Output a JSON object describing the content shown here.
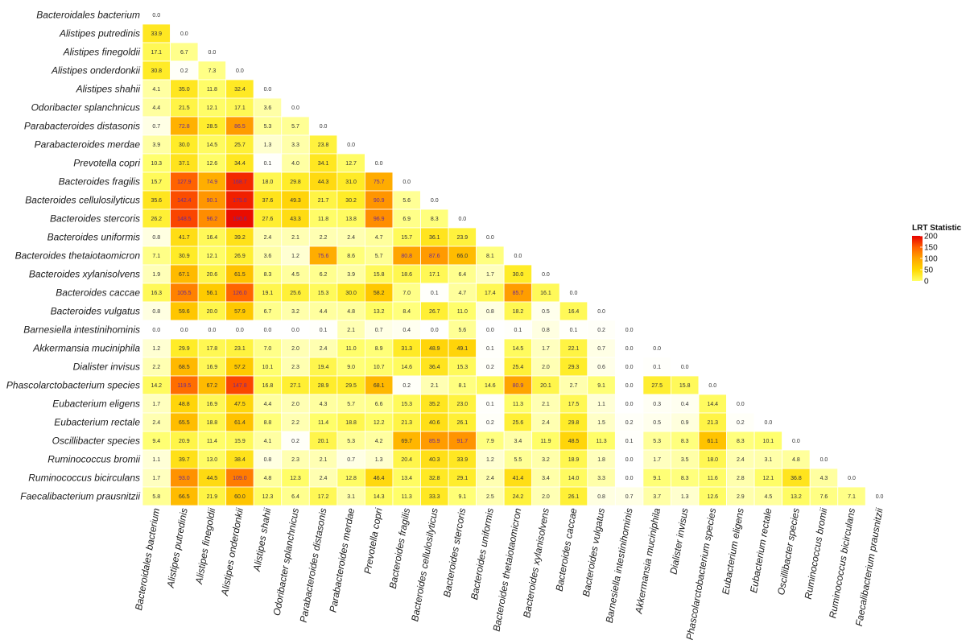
{
  "chart_data": {
    "type": "heatmap",
    "title": "",
    "xlabel": "",
    "ylabel": "",
    "species": [
      "Bacteroidales bacterium",
      "Alistipes putredinis",
      "Alistipes finegoldii",
      "Alistipes onderdonkii",
      "Alistipes shahii",
      "Odoribacter splanchnicus",
      "Parabacteroides distasonis",
      "Parabacteroides merdae",
      "Prevotella copri",
      "Bacteroides fragilis",
      "Bacteroides cellulosilyticus",
      "Bacteroides stercoris",
      "Bacteroides uniformis",
      "Bacteroides thetaiotaomicron",
      "Bacteroides xylanisolvens",
      "Bacteroides caccae",
      "Bacteroides vulgatus",
      "Barnesiella intestinihominis",
      "Akkermansia muciniphila",
      "Dialister invisus",
      "Phascolarctobacterium species",
      "Eubacterium eligens",
      "Eubacterium rectale",
      "Oscillibacter species",
      "Ruminococcus bromii",
      "Ruminococcus bicirculans",
      "Faecalibacterium prausnitzii"
    ],
    "values": [
      [
        0.0
      ],
      [
        33.9,
        0.0
      ],
      [
        17.1,
        6.7,
        0.0
      ],
      [
        30.8,
        0.2,
        7.3,
        0.0
      ],
      [
        4.1,
        35.0,
        11.8,
        32.4,
        0.0
      ],
      [
        4.4,
        21.5,
        12.1,
        17.1,
        3.6,
        0.0
      ],
      [
        0.7,
        72.8,
        28.5,
        86.5,
        5.3,
        5.7,
        0.0
      ],
      [
        3.9,
        30.0,
        14.5,
        25.7,
        1.3,
        3.3,
        23.8,
        0.0
      ],
      [
        10.3,
        37.1,
        12.6,
        34.4,
        0.1,
        4.0,
        34.1,
        12.7,
        0.0
      ],
      [
        15.7,
        127.9,
        74.9,
        168.7,
        18.0,
        29.8,
        44.3,
        31.0,
        75.7,
        0.0
      ],
      [
        35.6,
        142.4,
        90.1,
        175.0,
        37.6,
        49.3,
        21.7,
        30.2,
        90.9,
        5.6,
        0.0
      ],
      [
        26.2,
        148.5,
        96.2,
        190.6,
        27.6,
        43.3,
        11.8,
        13.8,
        96.9,
        6.9,
        8.3,
        0.0
      ],
      [
        0.8,
        41.7,
        16.4,
        39.2,
        2.4,
        2.1,
        2.2,
        2.4,
        4.7,
        15.7,
        36.1,
        23.9,
        0.0
      ],
      [
        7.1,
        30.9,
        12.1,
        26.9,
        3.6,
        1.2,
        75.6,
        8.6,
        5.7,
        80.8,
        87.6,
        66.0,
        8.1,
        0.0
      ],
      [
        1.9,
        67.1,
        20.6,
        61.5,
        8.3,
        4.5,
        6.2,
        3.9,
        15.8,
        18.6,
        17.1,
        6.4,
        1.7,
        30.0,
        0.0
      ],
      [
        16.3,
        105.5,
        56.1,
        126.0,
        19.1,
        25.6,
        15.3,
        30.0,
        58.2,
        7.0,
        0.1,
        4.7,
        17.4,
        85.7,
        16.1,
        0.0
      ],
      [
        0.8,
        59.6,
        20.0,
        57.9,
        6.7,
        3.2,
        4.4,
        4.8,
        13.2,
        8.4,
        26.7,
        11.0,
        0.8,
        18.2,
        0.5,
        16.4,
        0.0
      ],
      [
        0.0,
        0.0,
        0.0,
        0.0,
        0.0,
        0.0,
        0.1,
        2.1,
        0.7,
        0.4,
        0.0,
        5.6,
        0.0,
        0.1,
        0.8,
        0.1,
        0.2,
        0.0
      ],
      [
        1.2,
        29.9,
        17.8,
        23.1,
        7.0,
        2.0,
        2.4,
        11.0,
        8.9,
        31.3,
        48.9,
        49.1,
        0.1,
        14.5,
        1.7,
        22.1,
        0.7,
        0.0,
        0.0
      ],
      [
        2.2,
        68.5,
        16.9,
        57.2,
        10.1,
        2.3,
        19.4,
        9.0,
        10.7,
        14.6,
        36.4,
        15.3,
        0.2,
        25.4,
        2.0,
        29.3,
        0.6,
        0.0,
        0.1,
        0.0
      ],
      [
        14.2,
        119.5,
        67.2,
        147.8,
        16.8,
        27.1,
        28.9,
        29.5,
        68.1,
        0.2,
        2.1,
        8.1,
        14.6,
        80.9,
        20.1,
        2.7,
        9.1,
        0.0,
        27.5,
        15.8,
        0.0
      ],
      [
        1.7,
        48.8,
        16.9,
        47.5,
        4.4,
        2.0,
        4.3,
        5.7,
        6.6,
        15.3,
        35.2,
        23.0,
        0.1,
        11.3,
        2.1,
        17.5,
        1.1,
        0.0,
        0.3,
        0.4,
        14.4,
        0.0
      ],
      [
        2.4,
        65.5,
        18.8,
        61.4,
        8.8,
        2.2,
        11.4,
        18.8,
        12.2,
        21.3,
        40.6,
        26.1,
        0.2,
        25.6,
        2.4,
        29.8,
        1.5,
        0.2,
        0.5,
        0.9,
        21.3,
        0.2,
        0.0
      ],
      [
        9.4,
        20.9,
        11.4,
        15.9,
        4.1,
        0.2,
        20.1,
        5.3,
        4.2,
        69.7,
        85.9,
        91.7,
        7.9,
        3.4,
        11.9,
        48.5,
        11.3,
        0.1,
        5.3,
        8.3,
        61.1,
        8.3,
        10.1,
        0.0
      ],
      [
        1.1,
        39.7,
        13.0,
        38.4,
        0.8,
        2.3,
        2.1,
        0.7,
        1.3,
        20.4,
        40.3,
        33.9,
        1.2,
        5.5,
        3.2,
        18.9,
        1.8,
        0.0,
        1.7,
        3.5,
        18.0,
        2.4,
        3.1,
        4.8,
        0.0
      ],
      [
        1.7,
        93.0,
        44.5,
        109.0,
        4.8,
        12.3,
        2.4,
        12.8,
        46.4,
        13.4,
        32.8,
        29.1,
        2.4,
        41.4,
        3.4,
        14.0,
        3.3,
        0.0,
        9.1,
        8.3,
        11.6,
        2.8,
        12.1,
        36.8,
        4.3,
        0.0
      ],
      [
        5.8,
        66.5,
        21.9,
        60.0,
        12.3,
        6.4,
        17.2,
        3.1,
        14.3,
        11.3,
        33.3,
        9.1,
        2.5,
        24.2,
        2.0,
        26.1,
        0.8,
        0.7,
        3.7,
        1.3,
        12.6,
        2.9,
        4.5,
        13.2,
        7.6,
        7.1,
        0.0
      ]
    ],
    "legend": {
      "title": "LRT Statistic",
      "ticks": [
        "200",
        "150",
        "100",
        "50",
        "0"
      ],
      "tick_values": [
        200,
        150,
        100,
        50,
        0
      ],
      "range": [
        0,
        200
      ],
      "placement": "right"
    },
    "colors": {
      "zero": "#ffffff",
      "low": "#ffff80",
      "mid_low": "#ffdd00",
      "mid": "#ffa500",
      "high": "#ff5a00",
      "max": "#e60000",
      "cell_border": "#ffffff",
      "high_value_text": "#6a2c91",
      "text": "#333333"
    },
    "grid": false
  }
}
